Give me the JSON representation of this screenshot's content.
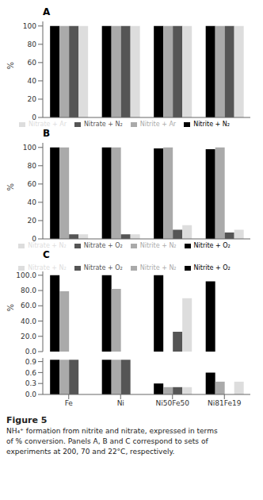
{
  "chart_data": [
    {
      "type": "bar",
      "title": "A",
      "categories": [
        "Fe",
        "Ni",
        "Ni50Fe50",
        "Ni81Fe19"
      ],
      "series": [
        {
          "name": "Nitrite + N₂",
          "color": "#000000",
          "values": [
            100,
            100,
            100,
            100
          ]
        },
        {
          "name": "Nitrite + Ar",
          "color": "#aaaaaa",
          "values": [
            100,
            100,
            100,
            100
          ]
        },
        {
          "name": "Nitrate + N₂",
          "color": "#555555",
          "values": [
            100,
            100,
            100,
            100
          ]
        },
        {
          "name": "Nitrate + Ar",
          "color": "#dddddd",
          "values": [
            100,
            100,
            100,
            100
          ]
        }
      ],
      "ylabel": "%",
      "ylim": [
        0,
        105
      ],
      "yticks": [
        0,
        20,
        40,
        60,
        80,
        100
      ],
      "grid": false,
      "legend": "bottom",
      "tick_labels": "y"
    },
    {
      "type": "bar",
      "title": "B",
      "categories": [
        "Fe",
        "Ni",
        "Ni50Fe50",
        "Ni81Fe19"
      ],
      "series": [
        {
          "name": "Nitrite + O₂",
          "color": "#000000",
          "values": [
            100,
            100,
            99,
            98
          ]
        },
        {
          "name": "Nitrite + N₂",
          "color": "#aaaaaa",
          "values": [
            100,
            100,
            100,
            100
          ]
        },
        {
          "name": "Nitrate + O₂",
          "color": "#555555",
          "values": [
            5,
            5,
            10,
            7
          ]
        },
        {
          "name": "Nitrate + N₂",
          "color": "#dddddd",
          "values": [
            5,
            5,
            15,
            10
          ]
        }
      ],
      "ylabel": "%",
      "ylim": [
        0,
        105
      ],
      "yticks": [
        0,
        20,
        40,
        60,
        80,
        100
      ],
      "grid": false,
      "legend": "bottom",
      "tick_labels": "y"
    },
    {
      "type": "bar",
      "title": "C",
      "categories": [
        "Fe",
        "Ni",
        "Ni50Fe50",
        "Ni81Fe19"
      ],
      "series": [
        {
          "name": "Nitrite + O₂",
          "color": "#000000",
          "values": [
            100,
            100,
            100,
            92
          ]
        },
        {
          "name": "Nitrite + N₂",
          "color": "#aaaaaa",
          "values": [
            79,
            82,
            0,
            0
          ]
        },
        {
          "name": "Nitrate + O₂",
          "color": "#555555",
          "values": [
            0,
            0,
            26,
            0
          ]
        },
        {
          "name": "Nitrate + N₂",
          "color": "#dddddd",
          "values": [
            0,
            0,
            70,
            0
          ]
        }
      ],
      "ylabel": "%",
      "ylim": [
        0,
        105
      ],
      "yticks": [
        {
          "value": 0,
          "label": "0.0"
        },
        {
          "value": 20,
          "label": "20.0"
        },
        {
          "value": 40,
          "label": "40.0"
        },
        {
          "value": 60,
          "label": "60.0"
        },
        {
          "value": 80,
          "label": "80.0"
        },
        {
          "value": 100,
          "label": "100.0"
        }
      ],
      "grid": false,
      "legend": "top",
      "tick_labels": "y"
    },
    {
      "type": "bar",
      "categories": [
        "Fe",
        "Ni",
        "Ni50Fe50",
        "Ni81Fe19"
      ],
      "series": [
        {
          "color": "#000000",
          "values": [
            0.95,
            0.95,
            0.3,
            0.6
          ]
        },
        {
          "color": "#aaaaaa",
          "values": [
            0.95,
            0.95,
            0.2,
            0.35
          ]
        },
        {
          "color": "#555555",
          "values": [
            0.95,
            0.95,
            0.2,
            0
          ]
        },
        {
          "color": "#dddddd",
          "values": [
            0,
            0,
            0.2,
            0.35
          ]
        }
      ],
      "ylim": [
        0,
        1.0
      ],
      "yticks": [
        {
          "value": 0,
          "label": "0.0"
        },
        0.3,
        0.6,
        0.9
      ],
      "grid": false,
      "annotations": [
        "Figure 5",
        "NH₄⁺ formation from nitrite and nitrate, expressed in terms\nof % conversion. Panels A, B and C correspond to sets of\nexperiments at 200, 70 and 22°C, respectively."
      ]
    }
  ]
}
